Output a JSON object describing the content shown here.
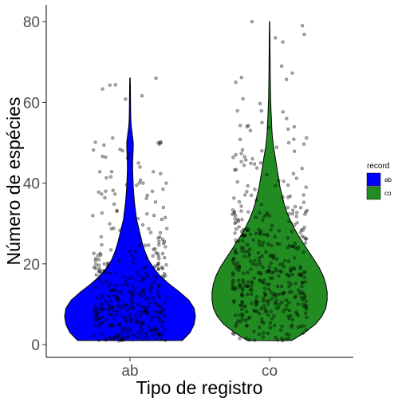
{
  "chart_data": {
    "type": "violin",
    "xlabel": "Tipo de registro",
    "ylabel": "Número de espécies",
    "categories": [
      "ab",
      "co"
    ],
    "ylim": [
      0,
      82
    ],
    "yticks": [
      0,
      20,
      40,
      60,
      80
    ],
    "grid": false,
    "legend": {
      "title": "record",
      "position": "right",
      "entries": [
        "ab",
        "co"
      ]
    },
    "colors": {
      "ab": "#0000ff",
      "co": "#228b22",
      "point": "#000000"
    },
    "series": [
      {
        "name": "ab",
        "min": 1,
        "max": 66,
        "density_profile": [
          [
            1,
            0.8
          ],
          [
            3,
            0.92
          ],
          [
            5,
            0.98
          ],
          [
            7,
            1.0
          ],
          [
            9,
            0.98
          ],
          [
            11,
            0.9
          ],
          [
            13,
            0.76
          ],
          [
            15,
            0.6
          ],
          [
            17,
            0.46
          ],
          [
            19,
            0.36
          ],
          [
            21,
            0.28
          ],
          [
            23,
            0.23
          ],
          [
            25,
            0.19
          ],
          [
            27,
            0.16
          ],
          [
            29,
            0.13
          ],
          [
            31,
            0.1
          ],
          [
            33,
            0.085
          ],
          [
            35,
            0.07
          ],
          [
            37,
            0.06
          ],
          [
            39,
            0.05
          ],
          [
            41,
            0.045
          ],
          [
            43,
            0.04
          ],
          [
            45,
            0.04
          ],
          [
            47,
            0.045
          ],
          [
            49,
            0.05
          ],
          [
            50,
            0.05
          ],
          [
            52,
            0.035
          ],
          [
            54,
            0.02
          ],
          [
            56,
            0.012
          ],
          [
            58,
            0.01
          ],
          [
            60,
            0.008
          ],
          [
            62,
            0.007
          ],
          [
            64,
            0.006
          ],
          [
            66,
            0.004
          ]
        ],
        "outliers": [
          66,
          50,
          50,
          48,
          44,
          40,
          37,
          34,
          33,
          32
        ]
      },
      {
        "name": "co",
        "min": 1,
        "max": 80,
        "density_profile": [
          [
            1,
            0.34
          ],
          [
            3,
            0.54
          ],
          [
            5,
            0.7
          ],
          [
            7,
            0.8
          ],
          [
            9,
            0.86
          ],
          [
            11,
            0.88
          ],
          [
            13,
            0.88
          ],
          [
            15,
            0.86
          ],
          [
            17,
            0.82
          ],
          [
            19,
            0.76
          ],
          [
            21,
            0.68
          ],
          [
            23,
            0.6
          ],
          [
            25,
            0.52
          ],
          [
            27,
            0.44
          ],
          [
            29,
            0.37
          ],
          [
            31,
            0.31
          ],
          [
            33,
            0.26
          ],
          [
            35,
            0.22
          ],
          [
            37,
            0.19
          ],
          [
            39,
            0.16
          ],
          [
            41,
            0.14
          ],
          [
            43,
            0.12
          ],
          [
            45,
            0.1
          ],
          [
            47,
            0.08
          ],
          [
            49,
            0.06
          ],
          [
            51,
            0.045
          ],
          [
            53,
            0.035
          ],
          [
            55,
            0.03
          ],
          [
            58,
            0.022
          ],
          [
            61,
            0.016
          ],
          [
            64,
            0.012
          ],
          [
            67,
            0.01
          ],
          [
            70,
            0.008
          ],
          [
            73,
            0.006
          ],
          [
            76,
            0.005
          ],
          [
            80,
            0.003
          ]
        ],
        "outliers": [
          80,
          79,
          76,
          69,
          65,
          56,
          55,
          54,
          53,
          50,
          48,
          47,
          46,
          45
        ]
      }
    ]
  }
}
